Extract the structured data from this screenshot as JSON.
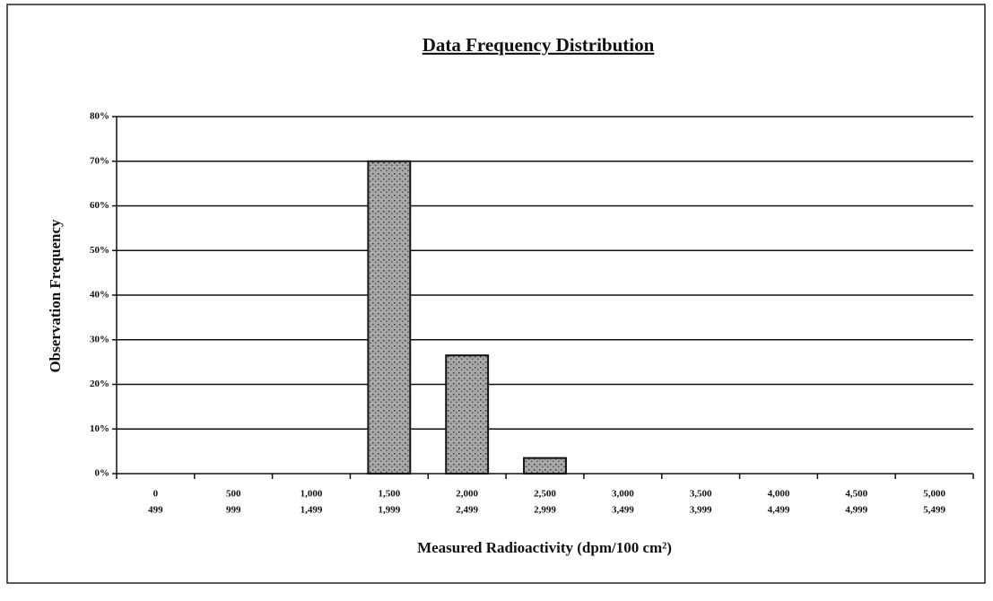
{
  "chart_data": {
    "type": "bar",
    "title": "Data Frequency Distribution",
    "x_label": "Measured Radioactivity (dpm/100 cm²)",
    "y_label": "Observation Frequency",
    "categories": [
      [
        "0",
        "499"
      ],
      [
        "500",
        "999"
      ],
      [
        "1,000",
        "1,499"
      ],
      [
        "1,500",
        "1,999"
      ],
      [
        "2,000",
        "2,499"
      ],
      [
        "2,500",
        "2,999"
      ],
      [
        "3,000",
        "3,499"
      ],
      [
        "3,500",
        "3,999"
      ],
      [
        "4,000",
        "4,499"
      ],
      [
        "4,500",
        "4,999"
      ],
      [
        "5,000",
        "5,499"
      ]
    ],
    "values": [
      0,
      0,
      0,
      70,
      26.5,
      3.5,
      0,
      0,
      0,
      0,
      0
    ],
    "color": "#a8a8a8",
    "ylim": [
      0,
      80
    ],
    "yticks": [
      {
        "value": 0,
        "label": "0%"
      },
      {
        "value": 10,
        "label": "10%"
      },
      {
        "value": 20,
        "label": "20%"
      },
      {
        "value": 30,
        "label": "30%"
      },
      {
        "value": 40,
        "label": "40%"
      },
      {
        "value": 50,
        "label": "50%"
      },
      {
        "value": 60,
        "label": "60%"
      },
      {
        "value": 70,
        "label": "70%"
      },
      {
        "value": 80,
        "label": "80%"
      }
    ],
    "grid": true
  }
}
